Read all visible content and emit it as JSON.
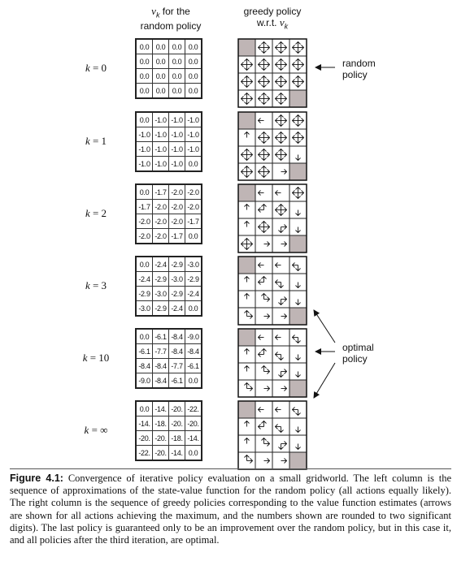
{
  "headers": {
    "left_var": "v",
    "left_sub": "k",
    "left_rest": "for the",
    "left_line2": "random policy",
    "right_line1": "greedy policy",
    "right_line2": "w.r.t.",
    "right_var": "v",
    "right_sub": "k"
  },
  "annotations": {
    "random": [
      "random",
      "policy"
    ],
    "optimal": [
      "optimal",
      "policy"
    ]
  },
  "rows": [
    {
      "k": "0",
      "values": [
        [
          "0.0",
          "0.0",
          "0.0",
          "0.0"
        ],
        [
          "0.0",
          "0.0",
          "0.0",
          "0.0"
        ],
        [
          "0.0",
          "0.0",
          "0.0",
          "0.0"
        ],
        [
          "0.0",
          "0.0",
          "0.0",
          "0.0"
        ]
      ],
      "policy": [
        [
          "T",
          "A",
          "A",
          "A"
        ],
        [
          "A",
          "A",
          "A",
          "A"
        ],
        [
          "A",
          "A",
          "A",
          "A"
        ],
        [
          "A",
          "A",
          "A",
          "T"
        ]
      ]
    },
    {
      "k": "1",
      "values": [
        [
          "0.0",
          "-1.0",
          "-1.0",
          "-1.0"
        ],
        [
          "-1.0",
          "-1.0",
          "-1.0",
          "-1.0"
        ],
        [
          "-1.0",
          "-1.0",
          "-1.0",
          "-1.0"
        ],
        [
          "-1.0",
          "-1.0",
          "-1.0",
          "0.0"
        ]
      ],
      "policy": [
        [
          "T",
          "L",
          "A",
          "A"
        ],
        [
          "U",
          "A",
          "A",
          "A"
        ],
        [
          "A",
          "A",
          "A",
          "D"
        ],
        [
          "A",
          "A",
          "R",
          "T"
        ]
      ]
    },
    {
      "k": "2",
      "values": [
        [
          "0.0",
          "-1.7",
          "-2.0",
          "-2.0"
        ],
        [
          "-1.7",
          "-2.0",
          "-2.0",
          "-2.0"
        ],
        [
          "-2.0",
          "-2.0",
          "-2.0",
          "-1.7"
        ],
        [
          "-2.0",
          "-2.0",
          "-1.7",
          "0.0"
        ]
      ],
      "policy": [
        [
          "T",
          "L",
          "L",
          "A"
        ],
        [
          "U",
          "UL",
          "A",
          "D"
        ],
        [
          "U",
          "A",
          "RD",
          "D"
        ],
        [
          "A",
          "R",
          "R",
          "T"
        ]
      ]
    },
    {
      "k": "3",
      "values": [
        [
          "0.0",
          "-2.4",
          "-2.9",
          "-3.0"
        ],
        [
          "-2.4",
          "-2.9",
          "-3.0",
          "-2.9"
        ],
        [
          "-2.9",
          "-3.0",
          "-2.9",
          "-2.4"
        ],
        [
          "-3.0",
          "-2.9",
          "-2.4",
          "0.0"
        ]
      ],
      "policy": [
        [
          "T",
          "L",
          "L",
          "LD"
        ],
        [
          "U",
          "UL",
          "LD",
          "D"
        ],
        [
          "U",
          "UR",
          "RD",
          "D"
        ],
        [
          "UR",
          "R",
          "R",
          "T"
        ]
      ]
    },
    {
      "k": "10",
      "values": [
        [
          "0.0",
          "-6.1",
          "-8.4",
          "-9.0"
        ],
        [
          "-6.1",
          "-7.7",
          "-8.4",
          "-8.4"
        ],
        [
          "-8.4",
          "-8.4",
          "-7.7",
          "-6.1"
        ],
        [
          "-9.0",
          "-8.4",
          "-6.1",
          "0.0"
        ]
      ],
      "policy": [
        [
          "T",
          "L",
          "L",
          "LD"
        ],
        [
          "U",
          "UL",
          "LD",
          "D"
        ],
        [
          "U",
          "UR",
          "RD",
          "D"
        ],
        [
          "UR",
          "R",
          "R",
          "T"
        ]
      ]
    },
    {
      "k": "∞",
      "values": [
        [
          "0.0",
          "-14.",
          "-20.",
          "-22."
        ],
        [
          "-14.",
          "-18.",
          "-20.",
          "-20."
        ],
        [
          "-20.",
          "-20.",
          "-18.",
          "-14."
        ],
        [
          "-22.",
          "-20.",
          "-14.",
          "0.0"
        ]
      ],
      "policy": [
        [
          "T",
          "L",
          "L",
          "LD"
        ],
        [
          "U",
          "UL",
          "LD",
          "D"
        ],
        [
          "U",
          "UR",
          "RD",
          "D"
        ],
        [
          "UR",
          "R",
          "R",
          "T"
        ]
      ]
    }
  ],
  "caption": {
    "label": "Figure 4.1:",
    "text": "Convergence of iterative policy evaluation on a small gridworld. The left column is the sequence of approximations of the state-value function for the random policy (all actions equally likely). The right column is the sequence of greedy policies corresponding to the value function estimates (arrows are shown for all actions achieving the maximum, and the numbers shown are rounded to two significant digits). The last policy is guaranteed only to be an improvement over the random policy, but in this case it, and all policies after the third iteration, are optimal."
  }
}
